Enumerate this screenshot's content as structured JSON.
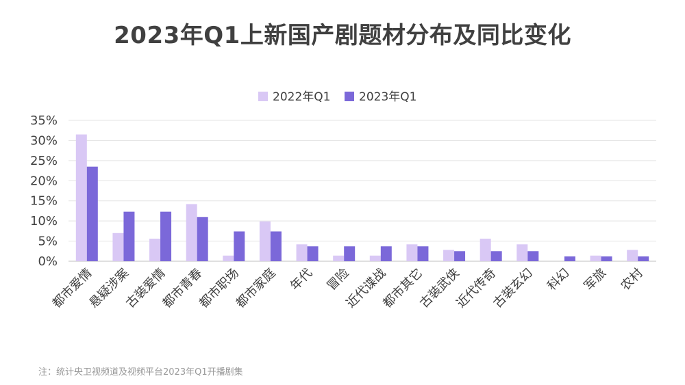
{
  "chart_data": {
    "type": "bar",
    "title": "2023年Q1上新国产剧题材分布及同比变化",
    "xlabel": "",
    "ylabel": "",
    "categories": [
      "都市爱情",
      "悬疑涉案",
      "古装爱情",
      "都市青春",
      "都市职场",
      "都市家庭",
      "年代",
      "冒险",
      "近代谍战",
      "都市其它",
      "古装武侠",
      "近代传奇",
      "古装玄幻",
      "科幻",
      "军旅",
      "农村"
    ],
    "series": [
      {
        "name": "2022年Q1",
        "color": "#d9c8f5",
        "values": [
          31.5,
          7.0,
          5.6,
          14.2,
          1.4,
          9.9,
          4.2,
          1.4,
          1.4,
          4.2,
          2.8,
          5.6,
          4.2,
          0,
          1.4,
          2.8
        ]
      },
      {
        "name": "2023年Q1",
        "color": "#7b68d9",
        "values": [
          23.5,
          12.3,
          12.3,
          11.0,
          7.4,
          7.4,
          3.7,
          3.7,
          3.7,
          3.7,
          2.5,
          2.5,
          2.5,
          1.2,
          1.2,
          1.2
        ]
      }
    ],
    "ylim": [
      0,
      35
    ],
    "yticks": [
      0,
      5,
      10,
      15,
      20,
      25,
      30,
      35
    ],
    "ytick_labels": [
      "0%",
      "5%",
      "10%",
      "15%",
      "20%",
      "25%",
      "30%",
      "35%"
    ],
    "grid": true,
    "legend_position": "top-center",
    "footnote": "注：统计央卫视频道及视频平台2023年Q1开播剧集"
  }
}
